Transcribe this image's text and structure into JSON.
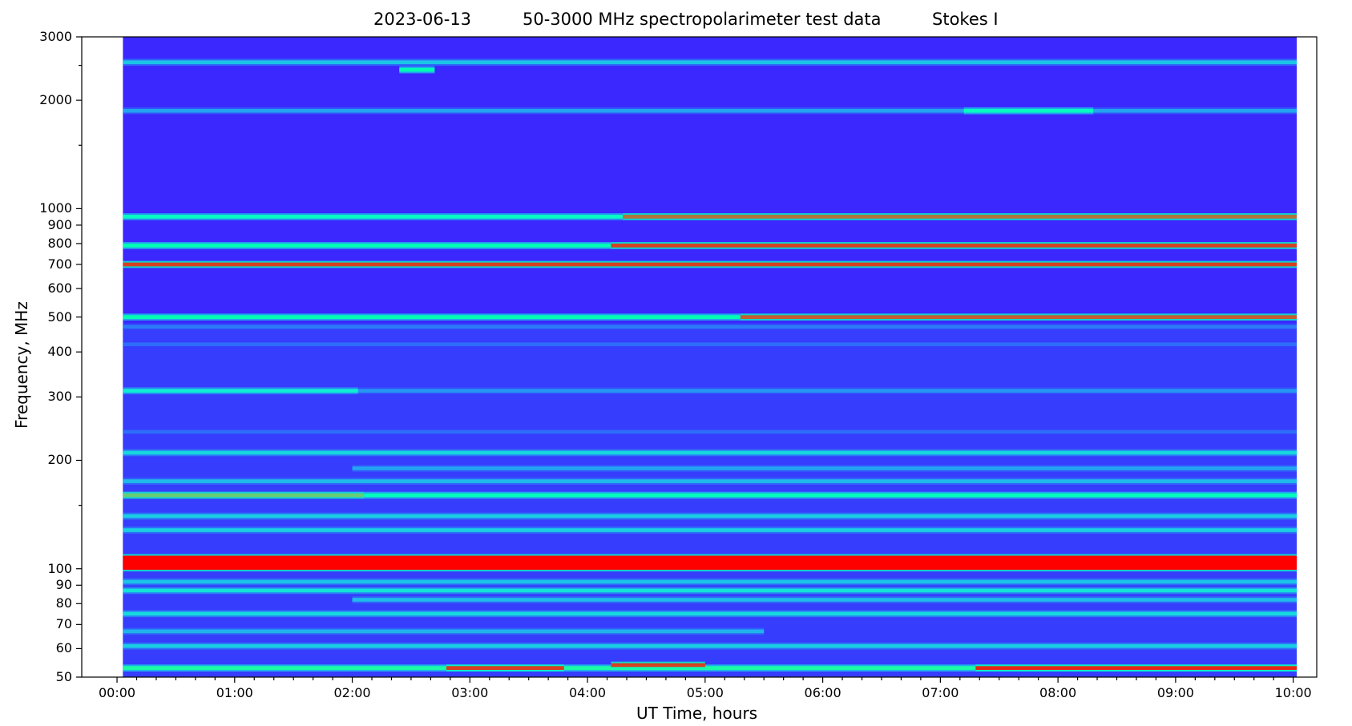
{
  "chart_data": {
    "type": "heatmap",
    "title": {
      "date": "2023-06-13",
      "description": "50-3000 MHz spectropolarimeter test data",
      "stokes": "Stokes I"
    },
    "xlabel": "UT Time, hours",
    "ylabel": "Frequency, MHz",
    "x_unit": "hours UT",
    "xlim": [
      -0.3,
      10.2
    ],
    "data_x_range": [
      0.05,
      10.03
    ],
    "ylim": [
      50,
      3000
    ],
    "y_scale": "log",
    "colormap": "rainbow",
    "x_ticks": [
      {
        "value": 0,
        "label": "00:00"
      },
      {
        "value": 1,
        "label": "01:00"
      },
      {
        "value": 2,
        "label": "02:00"
      },
      {
        "value": 3,
        "label": "03:00"
      },
      {
        "value": 4,
        "label": "04:00"
      },
      {
        "value": 5,
        "label": "05:00"
      },
      {
        "value": 6,
        "label": "06:00"
      },
      {
        "value": 7,
        "label": "07:00"
      },
      {
        "value": 8,
        "label": "08:00"
      },
      {
        "value": 9,
        "label": "09:00"
      },
      {
        "value": 10,
        "label": "10:00"
      }
    ],
    "y_ticks": [
      {
        "value": 50,
        "label": "50"
      },
      {
        "value": 60,
        "label": "60"
      },
      {
        "value": 70,
        "label": "70"
      },
      {
        "value": 80,
        "label": "80"
      },
      {
        "value": 90,
        "label": "90"
      },
      {
        "value": 100,
        "label": "100"
      },
      {
        "value": 200,
        "label": "200"
      },
      {
        "value": 300,
        "label": "300"
      },
      {
        "value": 400,
        "label": "400"
      },
      {
        "value": 500,
        "label": "500"
      },
      {
        "value": 600,
        "label": "600"
      },
      {
        "value": 700,
        "label": "700"
      },
      {
        "value": 800,
        "label": "800"
      },
      {
        "value": 900,
        "label": "900"
      },
      {
        "value": 1000,
        "label": "1000"
      },
      {
        "value": 2000,
        "label": "2000"
      },
      {
        "value": 3000,
        "label": "3000"
      }
    ],
    "y_minor_ticks": [
      150,
      1500,
      2500
    ],
    "background_intensity": 0.05,
    "bands": [
      {
        "freq_mhz": 2550,
        "x_start": 0.05,
        "x_end": 10.03,
        "intensity": 0.28
      },
      {
        "freq_mhz": 2430,
        "x_start": 2.4,
        "x_end": 2.7,
        "intensity": 0.5
      },
      {
        "freq_mhz": 1870,
        "x_start": 0.05,
        "x_end": 10.03,
        "intensity": 0.22
      },
      {
        "freq_mhz": 1870,
        "x_start": 7.2,
        "x_end": 8.3,
        "intensity": 0.45
      },
      {
        "freq_mhz": 950,
        "x_start": 0.05,
        "x_end": 4.3,
        "intensity": 0.45
      },
      {
        "freq_mhz": 950,
        "x_start": 4.3,
        "x_end": 10.03,
        "intensity": 0.85
      },
      {
        "freq_mhz": 790,
        "x_start": 0.05,
        "x_end": 4.2,
        "intensity": 0.5
      },
      {
        "freq_mhz": 790,
        "x_start": 4.2,
        "x_end": 10.03,
        "intensity": 0.92
      },
      {
        "freq_mhz": 700,
        "x_start": 0.05,
        "x_end": 10.03,
        "intensity": 0.92
      },
      {
        "freq_mhz": 500,
        "x_start": 0.05,
        "x_end": 5.3,
        "intensity": 0.5
      },
      {
        "freq_mhz": 500,
        "x_start": 5.3,
        "x_end": 10.03,
        "intensity": 0.88
      },
      {
        "freq_mhz": 470,
        "x_start": 0.05,
        "x_end": 10.03,
        "intensity": 0.16
      },
      {
        "freq_mhz": 420,
        "x_start": 0.05,
        "x_end": 10.03,
        "intensity": 0.14
      },
      {
        "freq_mhz": 312,
        "x_start": 0.05,
        "x_end": 2.05,
        "intensity": 0.38
      },
      {
        "freq_mhz": 312,
        "x_start": 2.05,
        "x_end": 10.03,
        "intensity": 0.2
      },
      {
        "freq_mhz": 240,
        "x_start": 0.05,
        "x_end": 10.03,
        "intensity": 0.14
      },
      {
        "freq_mhz": 210,
        "x_start": 0.05,
        "x_end": 10.03,
        "intensity": 0.32
      },
      {
        "freq_mhz": 190,
        "x_start": 2.0,
        "x_end": 10.03,
        "intensity": 0.22
      },
      {
        "freq_mhz": 175,
        "x_start": 0.05,
        "x_end": 10.03,
        "intensity": 0.26
      },
      {
        "freq_mhz": 160,
        "x_start": 0.05,
        "x_end": 2.1,
        "intensity": 0.7
      },
      {
        "freq_mhz": 160,
        "x_start": 2.1,
        "x_end": 10.03,
        "intensity": 0.48
      },
      {
        "freq_mhz": 140,
        "x_start": 0.05,
        "x_end": 10.03,
        "intensity": 0.3
      },
      {
        "freq_mhz": 128,
        "x_start": 0.05,
        "x_end": 10.03,
        "intensity": 0.3
      },
      {
        "freq_mhz": 104,
        "x_start": 0.05,
        "x_end": 10.03,
        "intensity": 1.0
      },
      {
        "freq_mhz": 92,
        "x_start": 0.05,
        "x_end": 10.03,
        "intensity": 0.28
      },
      {
        "freq_mhz": 87,
        "x_start": 0.05,
        "x_end": 10.03,
        "intensity": 0.35
      },
      {
        "freq_mhz": 82,
        "x_start": 2.0,
        "x_end": 10.03,
        "intensity": 0.26
      },
      {
        "freq_mhz": 75,
        "x_start": 0.05,
        "x_end": 10.03,
        "intensity": 0.33
      },
      {
        "freq_mhz": 67,
        "x_start": 0.05,
        "x_end": 5.5,
        "intensity": 0.25
      },
      {
        "freq_mhz": 61,
        "x_start": 0.05,
        "x_end": 10.03,
        "intensity": 0.3
      },
      {
        "freq_mhz": 53,
        "x_start": 0.05,
        "x_end": 10.03,
        "intensity": 0.55
      },
      {
        "freq_mhz": 53,
        "x_start": 2.8,
        "x_end": 3.8,
        "intensity": 0.92
      },
      {
        "freq_mhz": 54,
        "x_start": 4.2,
        "x_end": 5.0,
        "intensity": 0.92
      },
      {
        "freq_mhz": 53,
        "x_start": 7.3,
        "x_end": 10.03,
        "intensity": 0.95
      }
    ]
  }
}
